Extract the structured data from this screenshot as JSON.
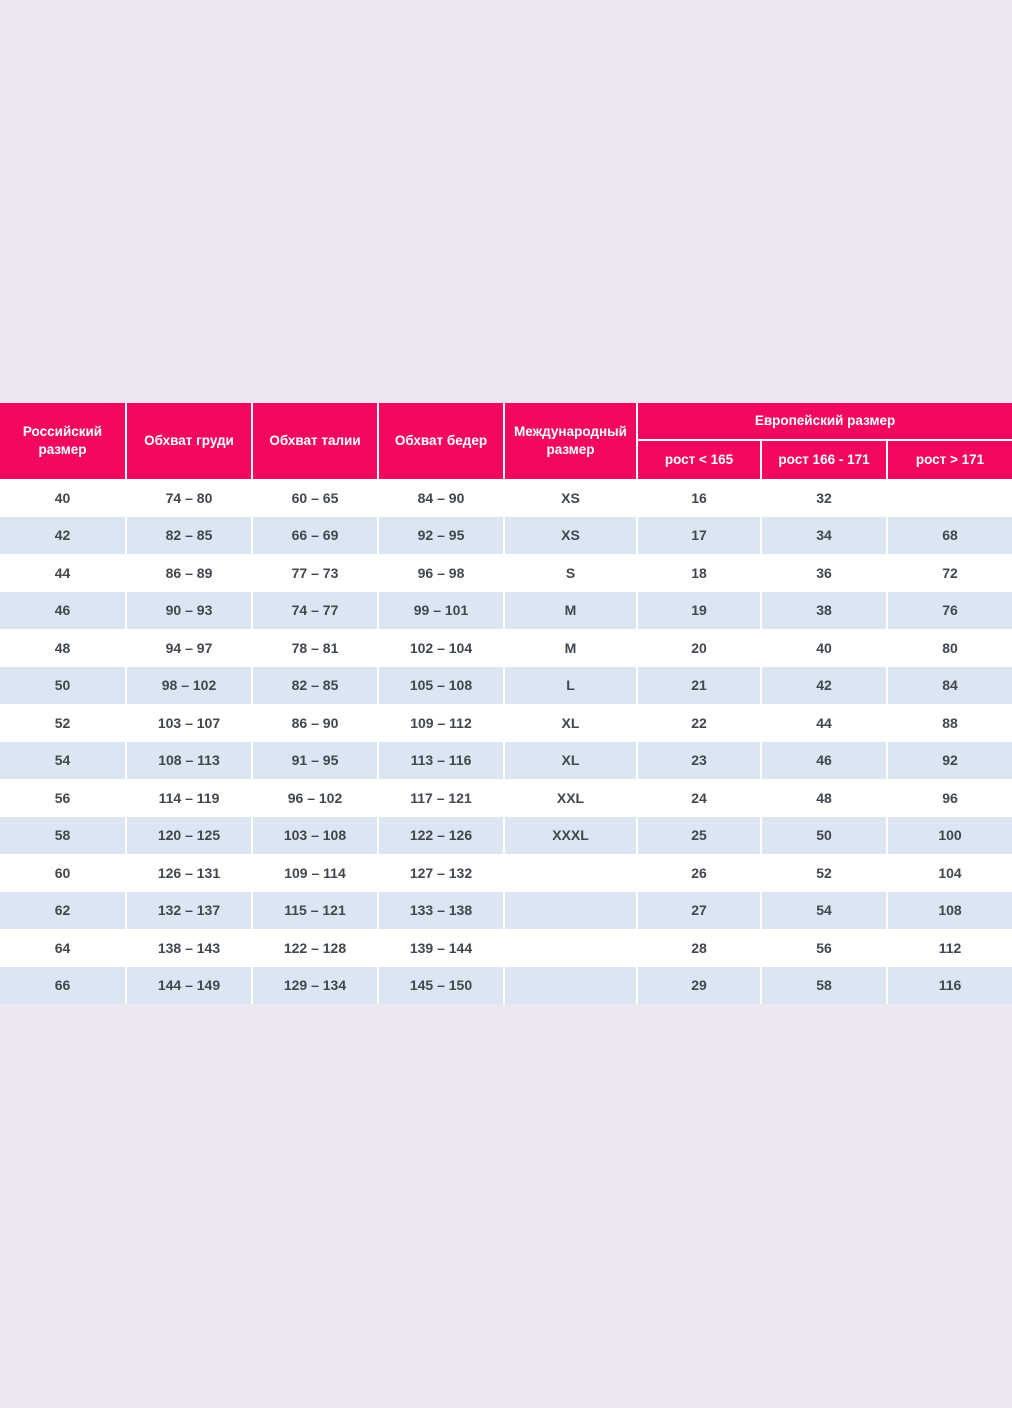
{
  "page": {
    "background_color": "#EDE7F1",
    "accent_color": "#F2095F",
    "row_alt_color": "#DBE6F2",
    "row_color": "#FFFFFF",
    "header_text_color": "#FFFFFF",
    "cell_text_color": "#40474F"
  },
  "chart_data": {
    "type": "table",
    "title": "",
    "header": {
      "russian_size": "Российский размер",
      "chest": "Обхват груди",
      "waist": "Обхват талии",
      "hips": "Обхват бедер",
      "international_size": "Международный размер",
      "european_group": {
        "label": "Европейский размер",
        "sub": [
          "рост < 165",
          "рост 166 - 171",
          "рост > 171"
        ]
      }
    },
    "rows": [
      [
        "40",
        "74 – 80",
        "60 – 65",
        "84 – 90",
        "XS",
        "16",
        "32",
        ""
      ],
      [
        "42",
        "82 – 85",
        "66 – 69",
        "92 – 95",
        "XS",
        "17",
        "34",
        "68"
      ],
      [
        "44",
        "86 – 89",
        "77 – 73",
        "96 – 98",
        "S",
        "18",
        "36",
        "72"
      ],
      [
        "46",
        "90 – 93",
        "74 – 77",
        "99 – 101",
        "M",
        "19",
        "38",
        "76"
      ],
      [
        "48",
        "94 – 97",
        "78 – 81",
        "102 – 104",
        "M",
        "20",
        "40",
        "80"
      ],
      [
        "50",
        "98 – 102",
        "82 – 85",
        "105 – 108",
        "L",
        "21",
        "42",
        "84"
      ],
      [
        "52",
        "103 – 107",
        "86 – 90",
        "109 – 112",
        "XL",
        "22",
        "44",
        "88"
      ],
      [
        "54",
        "108 – 113",
        "91 – 95",
        "113 – 116",
        "XL",
        "23",
        "46",
        "92"
      ],
      [
        "56",
        "114 – 119",
        "96 – 102",
        "117 – 121",
        "XXL",
        "24",
        "48",
        "96"
      ],
      [
        "58",
        "120 – 125",
        "103 – 108",
        "122 – 126",
        "XXXL",
        "25",
        "50",
        "100"
      ],
      [
        "60",
        "126 – 131",
        "109 – 114",
        "127 – 132",
        "",
        "26",
        "52",
        "104"
      ],
      [
        "62",
        "132 – 137",
        "115 – 121",
        "133 – 138",
        "",
        "27",
        "54",
        "108"
      ],
      [
        "64",
        "138 – 143",
        "122 – 128",
        "139 – 144",
        "",
        "28",
        "56",
        "112"
      ],
      [
        "66",
        "144 – 149",
        "129 – 134",
        "145 – 150",
        "",
        "29",
        "58",
        "116"
      ]
    ]
  }
}
